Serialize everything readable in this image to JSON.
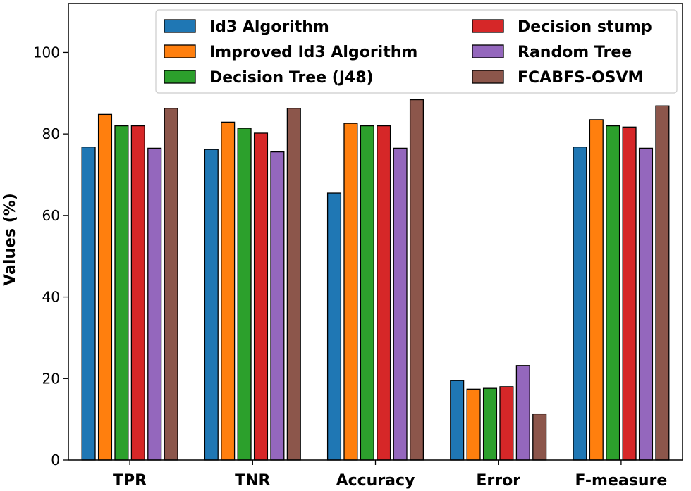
{
  "chart_data": {
    "type": "bar",
    "title": "",
    "xlabel": "",
    "ylabel": "Values (%)",
    "ylim": [
      0,
      112
    ],
    "yticks": [
      0,
      20,
      40,
      60,
      80,
      100
    ],
    "legend_position": "top-right",
    "categories": [
      "TPR",
      "TNR",
      "Accuracy",
      "Error",
      "F-measure"
    ],
    "series": [
      {
        "name": "Id3 Algorithm",
        "color": "#1f77b4",
        "values": [
          76.8,
          76.2,
          65.5,
          19.5,
          76.8
        ]
      },
      {
        "name": "Improved Id3 Algorithm",
        "color": "#ff7f0e",
        "values": [
          84.8,
          82.9,
          82.6,
          17.4,
          83.5
        ]
      },
      {
        "name": "Decision Tree (J48)",
        "color": "#2ca02c",
        "values": [
          82.0,
          81.4,
          82.0,
          17.6,
          82.0
        ]
      },
      {
        "name": "Decision stump",
        "color": "#d62728",
        "values": [
          82.0,
          80.2,
          82.0,
          18.0,
          81.7
        ]
      },
      {
        "name": "Random Tree",
        "color": "#9467bd",
        "values": [
          76.5,
          75.6,
          76.5,
          23.2,
          76.5
        ]
      },
      {
        "name": "FCABFS-OSVM",
        "color": "#8c564b",
        "values": [
          86.3,
          86.3,
          88.4,
          11.3,
          86.9
        ]
      }
    ]
  }
}
